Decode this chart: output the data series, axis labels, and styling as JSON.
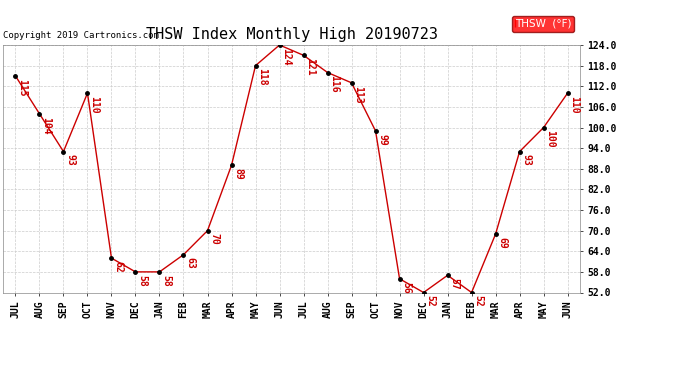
{
  "title": "THSW Index Monthly High 20190723",
  "copyright": "Copyright 2019 Cartronics.com",
  "legend_label": "THSW  (°F)",
  "months": [
    "JUL",
    "AUG",
    "SEP",
    "OCT",
    "NOV",
    "DEC",
    "JAN",
    "FEB",
    "MAR",
    "APR",
    "MAY",
    "JUN",
    "JUL",
    "AUG",
    "SEP",
    "OCT",
    "NOV",
    "DEC",
    "JAN",
    "FEB",
    "MAR",
    "APR",
    "MAY",
    "JUN"
  ],
  "values": [
    115,
    104,
    93,
    110,
    62,
    58,
    58,
    63,
    70,
    89,
    118,
    124,
    121,
    116,
    113,
    99,
    56,
    52,
    57,
    52,
    69,
    93,
    100,
    110
  ],
  "line_color": "#cc0000",
  "marker_color": "#000000",
  "bg_color": "#ffffff",
  "grid_color": "#cccccc",
  "ylim_min": 52.0,
  "ylim_max": 124.0,
  "yticks": [
    52.0,
    58.0,
    64.0,
    70.0,
    76.0,
    82.0,
    88.0,
    94.0,
    100.0,
    106.0,
    112.0,
    118.0,
    124.0
  ],
  "title_fontsize": 11,
  "label_fontsize": 7,
  "tick_fontsize": 7,
  "copyright_fontsize": 6.5
}
